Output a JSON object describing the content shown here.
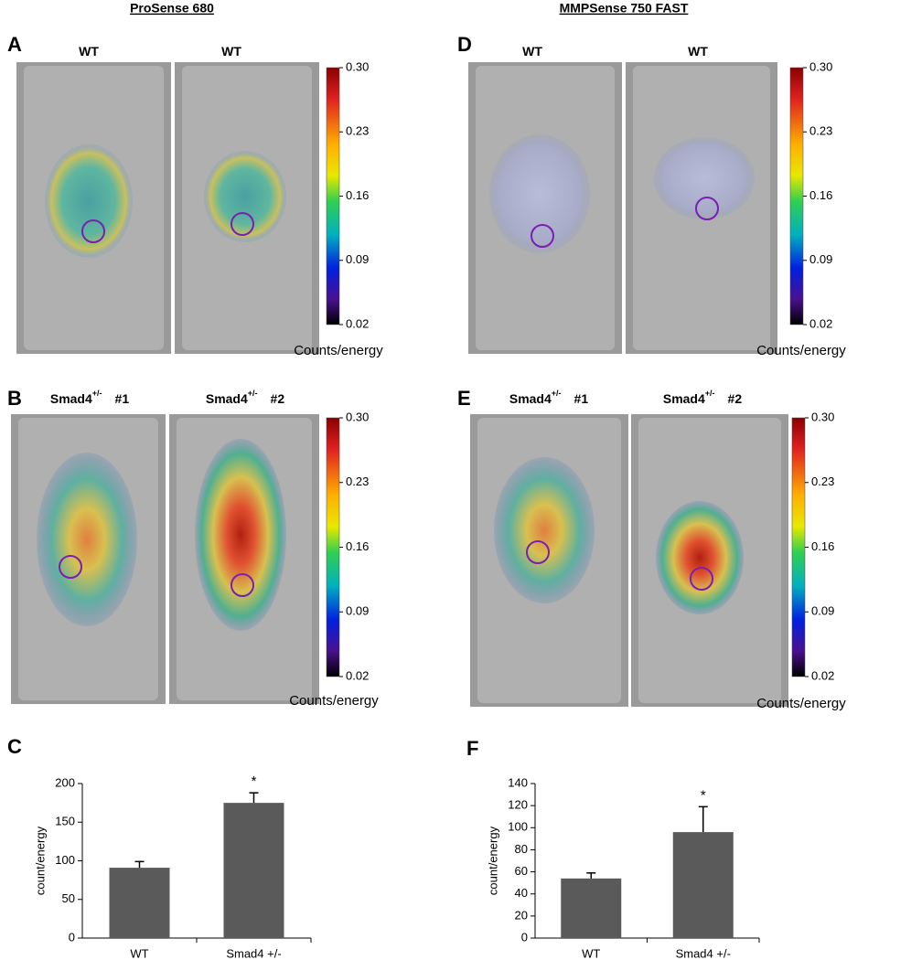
{
  "columns": [
    {
      "title": "ProSense 680"
    },
    {
      "title": "MMPSense 750 FAST"
    }
  ],
  "image_panels": [
    {
      "label": "A",
      "images": [
        {
          "title": "WT"
        },
        {
          "title": "WT"
        }
      ]
    },
    {
      "label": "D",
      "images": [
        {
          "title": "WT"
        },
        {
          "title": "WT"
        }
      ]
    },
    {
      "label": "B",
      "images": [
        {
          "title": "Smad4",
          "sup": "+/-",
          "suffix": "#1"
        },
        {
          "title": "Smad4",
          "sup": "+/-",
          "suffix": "#2"
        }
      ]
    },
    {
      "label": "E",
      "images": [
        {
          "title": "Smad4",
          "sup": "+/-",
          "suffix": "#1"
        },
        {
          "title": "Smad4",
          "sup": "+/-",
          "suffix": "#2"
        }
      ]
    }
  ],
  "colorbar": {
    "lim": [
      0.02,
      0.3
    ],
    "ticks": [
      {
        "value": 0.3,
        "label": "0.30"
      },
      0.23,
      0.16,
      0.09,
      0.02
    ],
    "label": "Counts/energy"
  },
  "chart_data": [
    {
      "type": "bar",
      "label": "C",
      "ylabel": "count/energy",
      "categories": [
        "WT",
        "Smad4 +/-"
      ],
      "values": [
        91,
        175
      ],
      "errors": [
        8,
        13
      ],
      "value_annotations": [
        null,
        "*"
      ],
      "color": "#5a5a5a",
      "ylim": [
        0,
        200
      ],
      "yticks": [
        0,
        50,
        100,
        150,
        200
      ]
    },
    {
      "type": "bar",
      "label": "F",
      "ylabel": "count/energy",
      "categories": [
        "WT",
        "Smad4 +/-"
      ],
      "values": [
        54,
        96
      ],
      "errors": [
        5,
        23
      ],
      "value_annotations": [
        null,
        "*"
      ],
      "color": "#5a5a5a",
      "ylim": [
        0,
        140
      ],
      "yticks": [
        0,
        20,
        40,
        60,
        80,
        100,
        120,
        140
      ]
    }
  ]
}
